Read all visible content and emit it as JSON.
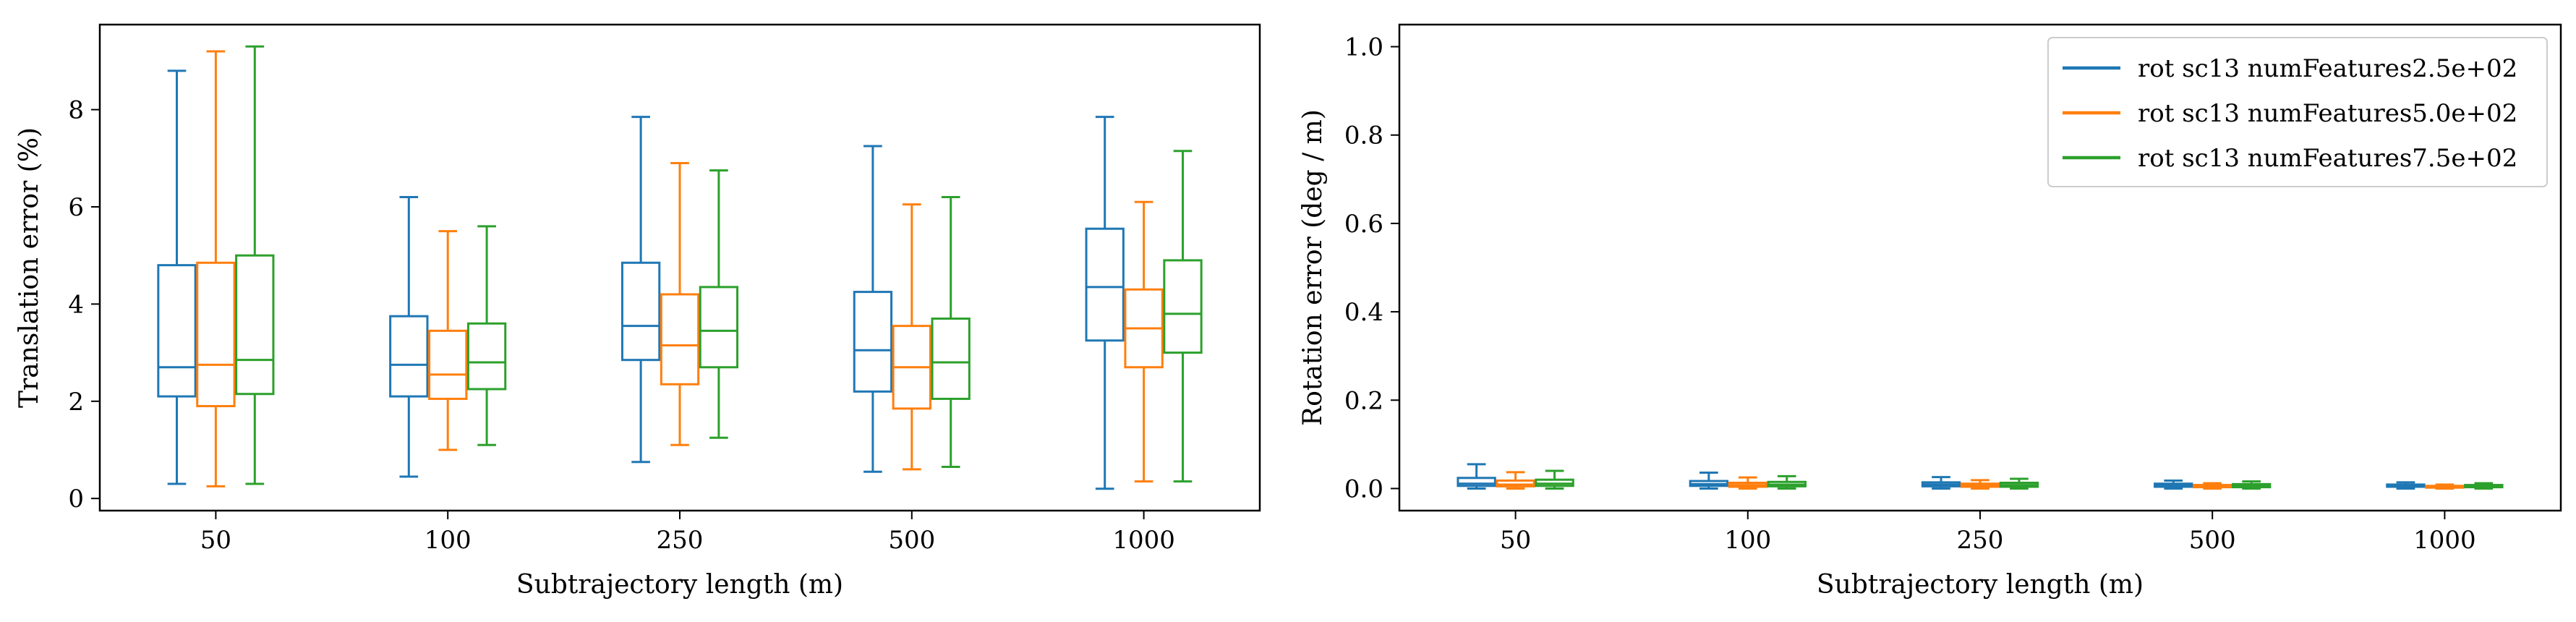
{
  "chart_data": [
    {
      "type": "box",
      "categories": [
        "50",
        "100",
        "250",
        "500",
        "1000"
      ],
      "xlabel": "Subtrajectory length (m)",
      "ylabel": "Translation error (%)",
      "ylim": [
        -0.25,
        9.75
      ],
      "yticks": [
        "0",
        "2",
        "4",
        "6",
        "8"
      ],
      "grid": false,
      "series": [
        {
          "color": "#1f77b4",
          "boxes": [
            {
              "min": 0.3,
              "q1": 2.1,
              "median": 2.7,
              "q3": 4.8,
              "max": 8.8
            },
            {
              "min": 0.45,
              "q1": 2.1,
              "median": 2.75,
              "q3": 3.75,
              "max": 6.2
            },
            {
              "min": 0.75,
              "q1": 2.85,
              "median": 3.55,
              "q3": 4.85,
              "max": 7.85
            },
            {
              "min": 0.55,
              "q1": 2.2,
              "median": 3.05,
              "q3": 4.25,
              "max": 7.25
            },
            {
              "min": 0.2,
              "q1": 3.25,
              "median": 4.35,
              "q3": 5.55,
              "max": 7.85
            }
          ]
        },
        {
          "color": "#ff7f0e",
          "boxes": [
            {
              "min": 0.25,
              "q1": 1.9,
              "median": 2.75,
              "q3": 4.85,
              "max": 9.2
            },
            {
              "min": 1.0,
              "q1": 2.05,
              "median": 2.55,
              "q3": 3.45,
              "max": 5.5
            },
            {
              "min": 1.1,
              "q1": 2.35,
              "median": 3.15,
              "q3": 4.2,
              "max": 6.9
            },
            {
              "min": 0.6,
              "q1": 1.85,
              "median": 2.7,
              "q3": 3.55,
              "max": 6.05
            },
            {
              "min": 0.35,
              "q1": 2.7,
              "median": 3.5,
              "q3": 4.3,
              "max": 6.1
            }
          ]
        },
        {
          "color": "#2ca02c",
          "boxes": [
            {
              "min": 0.3,
              "q1": 2.15,
              "median": 2.85,
              "q3": 5.0,
              "max": 9.3
            },
            {
              "min": 1.1,
              "q1": 2.25,
              "median": 2.8,
              "q3": 3.6,
              "max": 5.6
            },
            {
              "min": 1.25,
              "q1": 2.7,
              "median": 3.45,
              "q3": 4.35,
              "max": 6.75
            },
            {
              "min": 0.65,
              "q1": 2.05,
              "median": 2.8,
              "q3": 3.7,
              "max": 6.2
            },
            {
              "min": 0.35,
              "q1": 3.0,
              "median": 3.8,
              "q3": 4.9,
              "max": 7.15
            }
          ]
        }
      ]
    },
    {
      "type": "box",
      "categories": [
        "50",
        "100",
        "250",
        "500",
        "1000"
      ],
      "xlabel": "Subtrajectory length (m)",
      "ylabel": "Rotation error (deg / m)",
      "ylim": [
        -0.05,
        1.05
      ],
      "yticks": [
        "0.0",
        "0.2",
        "0.4",
        "0.6",
        "0.8",
        "1.0"
      ],
      "grid": false,
      "legend": {
        "position": "top-right",
        "entries": [
          {
            "label": "rot sc13 numFeatures2.5e+02",
            "color": "#1f77b4"
          },
          {
            "label": "rot sc13 numFeatures5.0e+02",
            "color": "#ff7f0e"
          },
          {
            "label": "rot sc13 numFeatures7.5e+02",
            "color": "#2ca02c"
          }
        ]
      },
      "series": [
        {
          "name": "rot sc13 numFeatures2.5e+02",
          "color": "#1f77b4",
          "boxes": [
            {
              "min": 0.0,
              "q1": 0.006,
              "median": 0.011,
              "q3": 0.024,
              "max": 0.055
            },
            {
              "min": 0.0,
              "q1": 0.006,
              "median": 0.01,
              "q3": 0.017,
              "max": 0.036
            },
            {
              "min": 0.0,
              "q1": 0.005,
              "median": 0.009,
              "q3": 0.014,
              "max": 0.026
            },
            {
              "min": 0.0,
              "q1": 0.004,
              "median": 0.007,
              "q3": 0.011,
              "max": 0.018
            },
            {
              "min": 0.0,
              "q1": 0.004,
              "median": 0.006,
              "q3": 0.009,
              "max": 0.014
            }
          ]
        },
        {
          "name": "rot sc13 numFeatures5.0e+02",
          "color": "#ff7f0e",
          "boxes": [
            {
              "min": 0.0,
              "q1": 0.005,
              "median": 0.009,
              "q3": 0.018,
              "max": 0.037
            },
            {
              "min": 0.0,
              "q1": 0.004,
              "median": 0.008,
              "q3": 0.013,
              "max": 0.025
            },
            {
              "min": 0.0,
              "q1": 0.004,
              "median": 0.007,
              "q3": 0.011,
              "max": 0.019
            },
            {
              "min": 0.0,
              "q1": 0.003,
              "median": 0.005,
              "q3": 0.008,
              "max": 0.012
            },
            {
              "min": 0.0,
              "q1": 0.002,
              "median": 0.004,
              "q3": 0.006,
              "max": 0.009
            }
          ]
        },
        {
          "name": "rot sc13 numFeatures7.5e+02",
          "color": "#2ca02c",
          "boxes": [
            {
              "min": 0.0,
              "q1": 0.006,
              "median": 0.011,
              "q3": 0.02,
              "max": 0.04
            },
            {
              "min": 0.0,
              "q1": 0.005,
              "median": 0.009,
              "q3": 0.015,
              "max": 0.028
            },
            {
              "min": 0.0,
              "q1": 0.004,
              "median": 0.008,
              "q3": 0.013,
              "max": 0.022
            },
            {
              "min": 0.0,
              "q1": 0.003,
              "median": 0.006,
              "q3": 0.01,
              "max": 0.016
            },
            {
              "min": 0.0,
              "q1": 0.003,
              "median": 0.005,
              "q3": 0.008,
              "max": 0.012
            }
          ]
        }
      ]
    }
  ]
}
